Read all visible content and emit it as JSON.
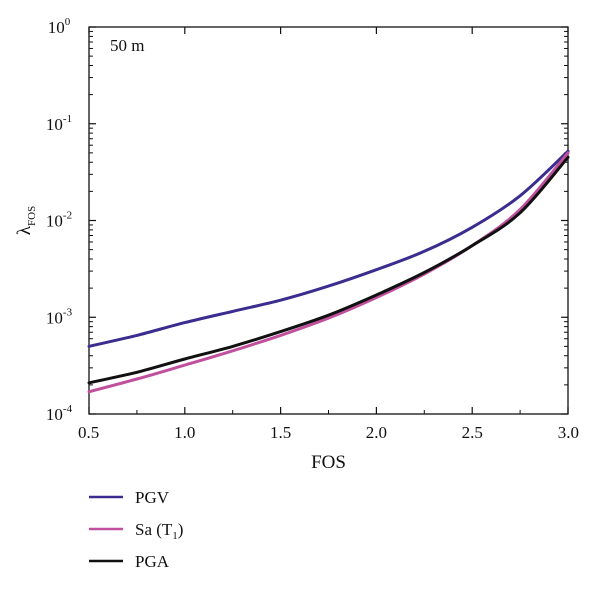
{
  "chart_data": {
    "type": "line",
    "annotation": "50 m",
    "xlabel": "FOS",
    "ylabel": "λ",
    "ylabel_sub": "FOS",
    "xlim": [
      0.5,
      3.0
    ],
    "ylim": [
      0.0001,
      1
    ],
    "yscale": "log",
    "x_ticks": [
      0.5,
      1.0,
      1.5,
      2.0,
      2.5,
      3.0
    ],
    "x_tick_labels": [
      "0.5",
      "1.0",
      "1.5",
      "2.0",
      "2.5",
      "3.0"
    ],
    "y_ticks": [
      {
        "value": 0.0001,
        "base": "10",
        "exp": "-4"
      },
      {
        "value": 0.001,
        "base": "10",
        "exp": "-3"
      },
      {
        "value": 0.01,
        "base": "10",
        "exp": "-2"
      },
      {
        "value": 0.1,
        "base": "10",
        "exp": "-1"
      },
      {
        "value": 1,
        "base": "10",
        "exp": "0"
      }
    ],
    "grid": false,
    "legend_position": "below",
    "series": [
      {
        "name": "PGV",
        "color": "#3a2d8f",
        "x": [
          0.5,
          0.75,
          1.0,
          1.25,
          1.5,
          1.75,
          2.0,
          2.25,
          2.5,
          2.75,
          3.0
        ],
        "y": [
          0.0005,
          0.00065,
          0.00088,
          0.00115,
          0.0015,
          0.0021,
          0.0031,
          0.0048,
          0.0085,
          0.018,
          0.052
        ]
      },
      {
        "name": "Sa",
        "name_sub": "1",
        "color": "#c0509e",
        "x": [
          0.5,
          0.75,
          1.0,
          1.25,
          1.5,
          1.75,
          2.0,
          2.25,
          2.5,
          2.75,
          3.0
        ],
        "y": [
          0.00017,
          0.00023,
          0.00032,
          0.00045,
          0.00065,
          0.00098,
          0.0016,
          0.0028,
          0.0055,
          0.013,
          0.05
        ]
      },
      {
        "name": "PGA",
        "color": "#111111",
        "x": [
          0.5,
          0.75,
          1.0,
          1.25,
          1.5,
          1.75,
          2.0,
          2.25,
          2.5,
          2.75,
          3.0
        ],
        "y": [
          0.00021,
          0.00027,
          0.00037,
          0.0005,
          0.00071,
          0.00105,
          0.0017,
          0.0029,
          0.0055,
          0.012,
          0.045
        ]
      }
    ]
  }
}
